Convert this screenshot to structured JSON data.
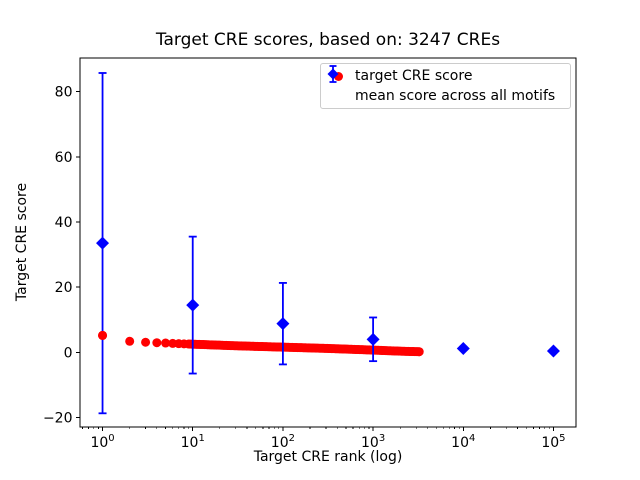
{
  "figure": {
    "title": "Target CRE scores, based on: 3247 CREs"
  },
  "chart_data": {
    "type": "scatter",
    "title": "Target CRE scores, based on: 3247 CREs",
    "xlabel": "Target CRE rank (log)",
    "ylabel": "Target CRE score",
    "x_scale": "log",
    "xlim_log10": [
      -0.25,
      5.25
    ],
    "ylim": [
      -22.9,
      90.3
    ],
    "x_tick_exponents": [
      0,
      1,
      2,
      3,
      4,
      5
    ],
    "y_ticks": [
      -20,
      0,
      20,
      40,
      60,
      80
    ],
    "grid": false,
    "legend_position": "upper right",
    "n_cres": 3247,
    "series": [
      {
        "name": "target CRE score",
        "style": "scatter",
        "marker": "circle",
        "color": "#ff0000",
        "n_points": 3247,
        "sample_ranks": [
          1,
          2,
          3,
          4,
          5,
          6,
          8,
          10,
          13,
          16,
          20,
          25,
          32,
          40,
          50,
          63,
          79,
          100,
          126,
          158,
          200,
          251,
          316,
          398,
          501,
          631,
          794,
          1000,
          1259,
          1585,
          1995,
          2512,
          3247
        ],
        "sample_values": [
          5.2,
          3.4,
          3.1,
          2.95,
          2.85,
          2.75,
          2.6,
          2.5,
          2.4,
          2.3,
          2.2,
          2.1,
          2.0,
          1.92,
          1.84,
          1.76,
          1.68,
          1.6,
          1.52,
          1.44,
          1.36,
          1.28,
          1.2,
          1.1,
          1.0,
          0.9,
          0.8,
          0.7,
          0.58,
          0.47,
          0.37,
          0.28,
          0.2
        ]
      },
      {
        "name": "mean score across all motifs",
        "style": "errorbar",
        "marker": "diamond",
        "color": "#0000ff",
        "x": [
          1,
          10,
          100,
          1000,
          10000,
          100000
        ],
        "y": [
          33.5,
          14.5,
          8.8,
          4.0,
          1.2,
          0.4
        ],
        "yerr": [
          52.2,
          21.0,
          12.5,
          6.7,
          0.5,
          0.3
        ]
      }
    ]
  },
  "legend": {
    "entries": [
      {
        "label": "target CRE score",
        "marker": "red-circle",
        "color": "#ff0000"
      },
      {
        "label": "mean score across all motifs",
        "marker": "blue-diamond-errorbar",
        "color": "#0000ff"
      }
    ]
  }
}
